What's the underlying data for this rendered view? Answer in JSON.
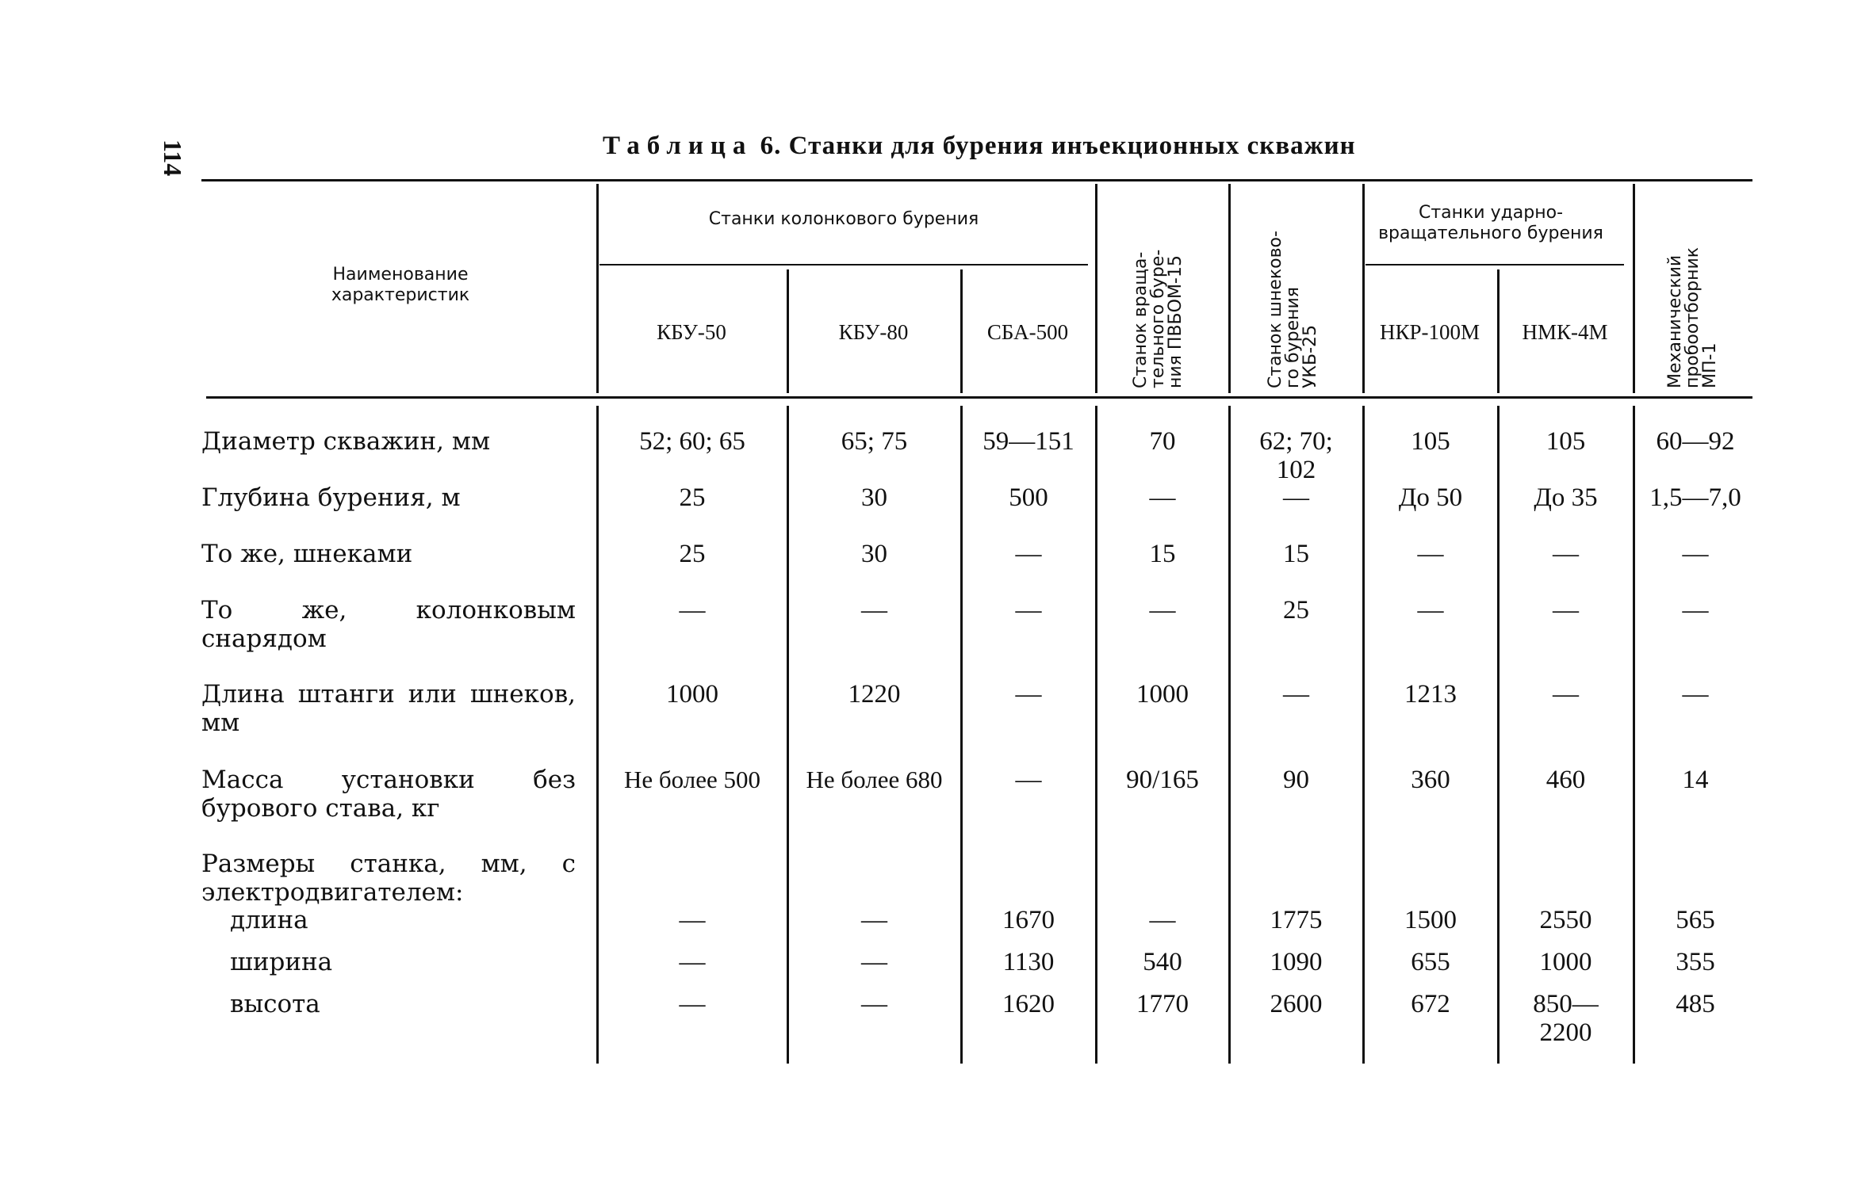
{
  "page_number": "114",
  "title": {
    "prefix": "Таблица",
    "text": "6. Станки для бурения инъекционных скважин"
  },
  "header": {
    "characteristic": "Наименование характеристик",
    "group_core": "Станки колонкового бурения",
    "group_percussion": "Станки ударно-вращательного бурения",
    "columns": [
      "КБУ-50",
      "КБУ-80",
      "СБА-500",
      "Станок вращательного бурения ПВБОМ-15",
      "Станок шнекового бурения УКБ-25",
      "НКР-100М",
      "НМК-4М",
      "Механический пробоотборник МП-1"
    ],
    "vertical_lines": {
      "pvbom": [
        "Станок враща-",
        "тельного буре-",
        "ния ПВБОМ-15"
      ],
      "ukb": [
        "Станок шнеково-",
        "го бурения",
        "УКБ-25"
      ],
      "mp": [
        "Механический",
        "пробоотборник",
        "МП-1"
      ]
    }
  },
  "rows": [
    {
      "label": "Диаметр скважин, мм",
      "values": [
        "52; 60; 65",
        "65;  75",
        "59—151",
        "70",
        "62; 70; 102",
        "105",
        "105",
        "60—92"
      ]
    },
    {
      "label": "Глубина бурения, м",
      "values": [
        "25",
        "30",
        "500",
        "—",
        "—",
        "До 50",
        "До 35",
        "1,5—7,0"
      ]
    },
    {
      "label": "То же, шнеками",
      "values": [
        "25",
        "30",
        "—",
        "15",
        "15",
        "—",
        "—",
        "—"
      ]
    },
    {
      "label": "То же, колонковым снарядом",
      "values": [
        "—",
        "—",
        "—",
        "—",
        "25",
        "—",
        "—",
        "—"
      ]
    },
    {
      "label": "Длина штанги или шнеков, мм",
      "values": [
        "1000",
        "1220",
        "—",
        "1000",
        "—",
        "1213",
        "—",
        "—"
      ]
    },
    {
      "label": "Масса установки без бурового става, кг",
      "values": [
        "Не более 500",
        "Не более 680",
        "—",
        "90/165",
        "90",
        "360",
        "460",
        "14"
      ]
    },
    {
      "label": "Размеры станка, мм, с электродвигателем:",
      "values": []
    },
    {
      "label": "длина",
      "sub": true,
      "values": [
        "—",
        "—",
        "1670",
        "—",
        "1775",
        "1500",
        "2550",
        "565"
      ]
    },
    {
      "label": "ширина",
      "sub": true,
      "values": [
        "—",
        "—",
        "1130",
        "540",
        "1090",
        "655",
        "1000",
        "355"
      ]
    },
    {
      "label": "высота",
      "sub": true,
      "values": [
        "—",
        "—",
        "1620",
        "1770",
        "2600",
        "672",
        "850—2200",
        "485"
      ]
    }
  ]
}
